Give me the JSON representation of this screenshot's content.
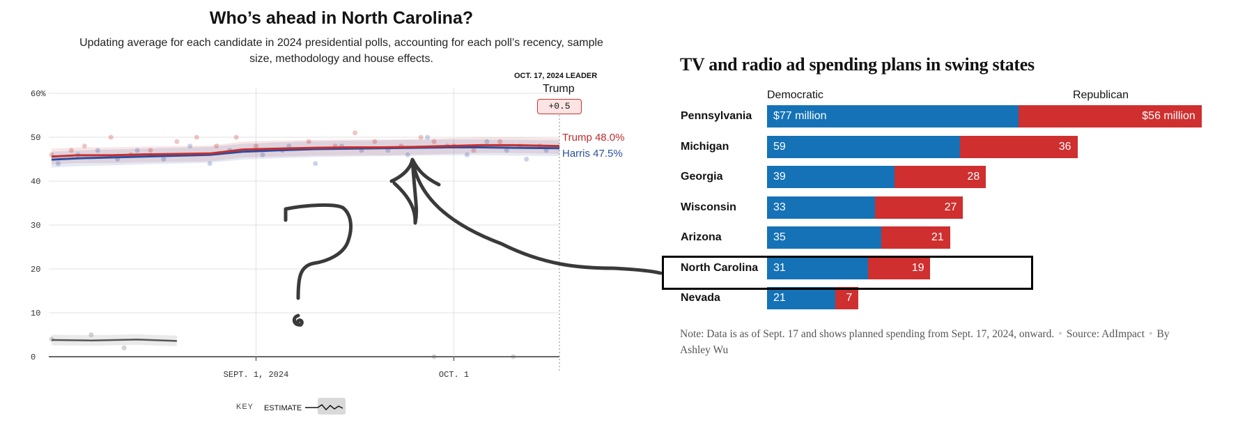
{
  "left_chart": {
    "title": "Who’s ahead in North Carolina?",
    "subtitle": "Updating average for each candidate in 2024 presidential polls, accounting for each poll’s recency, sample size, methodology and house effects.",
    "leader_label": "OCT. 17, 2024 LEADER",
    "leader_name": "Trump",
    "leader_margin": "+0.5",
    "trump_label": "Trump 48.0%",
    "harris_label": "Harris 47.5%",
    "key_label": "KEY",
    "key_estimate": "ESTIMATE",
    "colors": {
      "trump": "#c42f2f",
      "harris": "#2c4ea0",
      "other": "#555555"
    }
  },
  "right_chart": {
    "title": "TV and radio ad spending plans in swing states",
    "dem_header": "Democratic",
    "rep_header": "Republican",
    "note_text": "Note: Data is as of Sept. 17 and shows planned spending from Sept. 17, 2024, onward.",
    "source_text": "Source: AdImpact",
    "byline": "By Ashley Wu",
    "highlighted_state": "North Carolina",
    "colors": {
      "democratic": "#1572b6",
      "republican": "#cf2f2f"
    }
  },
  "annotation": {
    "question_mark": "?"
  },
  "chart_data": [
    {
      "type": "line",
      "title": "Who’s ahead in North Carolina?",
      "ylim": [
        0,
        60
      ],
      "y_ticks": [
        "60%",
        "50",
        "40",
        "30",
        "20",
        "10",
        "0"
      ],
      "y_tick_values": [
        60,
        50,
        40,
        30,
        20,
        10,
        0
      ],
      "x_ticks": [
        "SEPT. 1, 2024",
        "OCT. 1"
      ],
      "x_tick_dates": [
        "2024-09-01",
        "2024-10-01"
      ],
      "x_range": [
        "2024-08-01",
        "2024-10-17"
      ],
      "grid": true,
      "series": [
        {
          "name": "Trump",
          "dates": [
            "2024-08-01",
            "2024-08-05",
            "2024-08-10",
            "2024-08-15",
            "2024-08-20",
            "2024-08-25",
            "2024-08-30",
            "2024-09-04",
            "2024-09-10",
            "2024-09-15",
            "2024-09-20",
            "2024-09-25",
            "2024-09-30",
            "2024-10-05",
            "2024-10-10",
            "2024-10-17"
          ],
          "values": [
            45.6,
            45.9,
            45.9,
            46.1,
            46.2,
            46.3,
            47.2,
            47.4,
            47.6,
            47.7,
            47.7,
            47.8,
            48.0,
            48.2,
            48.2,
            48.0
          ]
        },
        {
          "name": "Harris",
          "dates": [
            "2024-08-01",
            "2024-08-05",
            "2024-08-10",
            "2024-08-15",
            "2024-08-20",
            "2024-08-25",
            "2024-08-30",
            "2024-09-04",
            "2024-09-10",
            "2024-09-15",
            "2024-09-20",
            "2024-09-25",
            "2024-09-30",
            "2024-10-05",
            "2024-10-10",
            "2024-10-17"
          ],
          "values": [
            44.9,
            45.2,
            45.4,
            45.6,
            45.8,
            46.0,
            46.7,
            47.0,
            47.3,
            47.4,
            47.5,
            47.6,
            47.7,
            47.7,
            47.6,
            47.5
          ]
        },
        {
          "name": "",
          "dates": [
            "2024-08-01",
            "2024-08-07",
            "2024-08-14",
            "2024-08-20"
          ],
          "values": [
            3.8,
            3.7,
            3.9,
            3.6
          ]
        }
      ],
      "poll_points": {
        "trump_dates": [
          "2024-08-01",
          "2024-08-04",
          "2024-08-06",
          "2024-08-10",
          "2024-08-13",
          "2024-08-16",
          "2024-08-20",
          "2024-08-23",
          "2024-08-26",
          "2024-08-29",
          "2024-09-01",
          "2024-09-05",
          "2024-09-09",
          "2024-09-13",
          "2024-09-16",
          "2024-09-19",
          "2024-09-23",
          "2024-09-26",
          "2024-09-28",
          "2024-10-01",
          "2024-10-04",
          "2024-10-08",
          "2024-10-11",
          "2024-10-14"
        ],
        "trump_values": [
          46,
          47,
          48,
          50,
          46,
          47,
          49,
          50,
          48,
          50,
          48,
          47,
          49,
          48,
          51,
          49,
          48,
          50,
          49,
          48,
          47,
          49,
          48,
          48
        ],
        "harris_dates": [
          "2024-08-02",
          "2024-08-05",
          "2024-08-08",
          "2024-08-11",
          "2024-08-14",
          "2024-08-18",
          "2024-08-22",
          "2024-08-25",
          "2024-08-28",
          "2024-09-02",
          "2024-09-06",
          "2024-09-10",
          "2024-09-14",
          "2024-09-17",
          "2024-09-21",
          "2024-09-24",
          "2024-09-27",
          "2024-09-30",
          "2024-10-03",
          "2024-10-06",
          "2024-10-09",
          "2024-10-12",
          "2024-10-15"
        ],
        "harris_values": [
          44,
          46,
          47,
          45,
          47,
          45,
          48,
          44,
          47,
          46,
          48,
          44,
          48,
          47,
          47,
          46,
          50,
          48,
          46,
          49,
          47,
          45,
          47
        ],
        "other_dates": [
          "2024-08-01",
          "2024-08-07",
          "2024-08-12",
          "2024-09-28",
          "2024-10-10"
        ],
        "other_values": [
          4,
          5,
          2,
          0,
          0
        ]
      }
    },
    {
      "type": "bar",
      "title": "TV and radio ad spending plans in swing states",
      "unit": "million dollars",
      "categories": [
        "Pennsylvania",
        "Michigan",
        "Georgia",
        "Wisconsin",
        "Arizona",
        "North Carolina",
        "Nevada"
      ],
      "series": [
        {
          "name": "Democratic",
          "values": [
            77,
            59,
            39,
            33,
            35,
            31,
            21
          ],
          "labels": [
            "$77 million",
            "59",
            "39",
            "33",
            "35",
            "31",
            "21"
          ]
        },
        {
          "name": "Republican",
          "values": [
            56,
            36,
            28,
            27,
            21,
            19,
            7
          ],
          "labels": [
            "$56 million",
            "36",
            "28",
            "27",
            "21",
            "19",
            "7"
          ]
        }
      ]
    }
  ]
}
